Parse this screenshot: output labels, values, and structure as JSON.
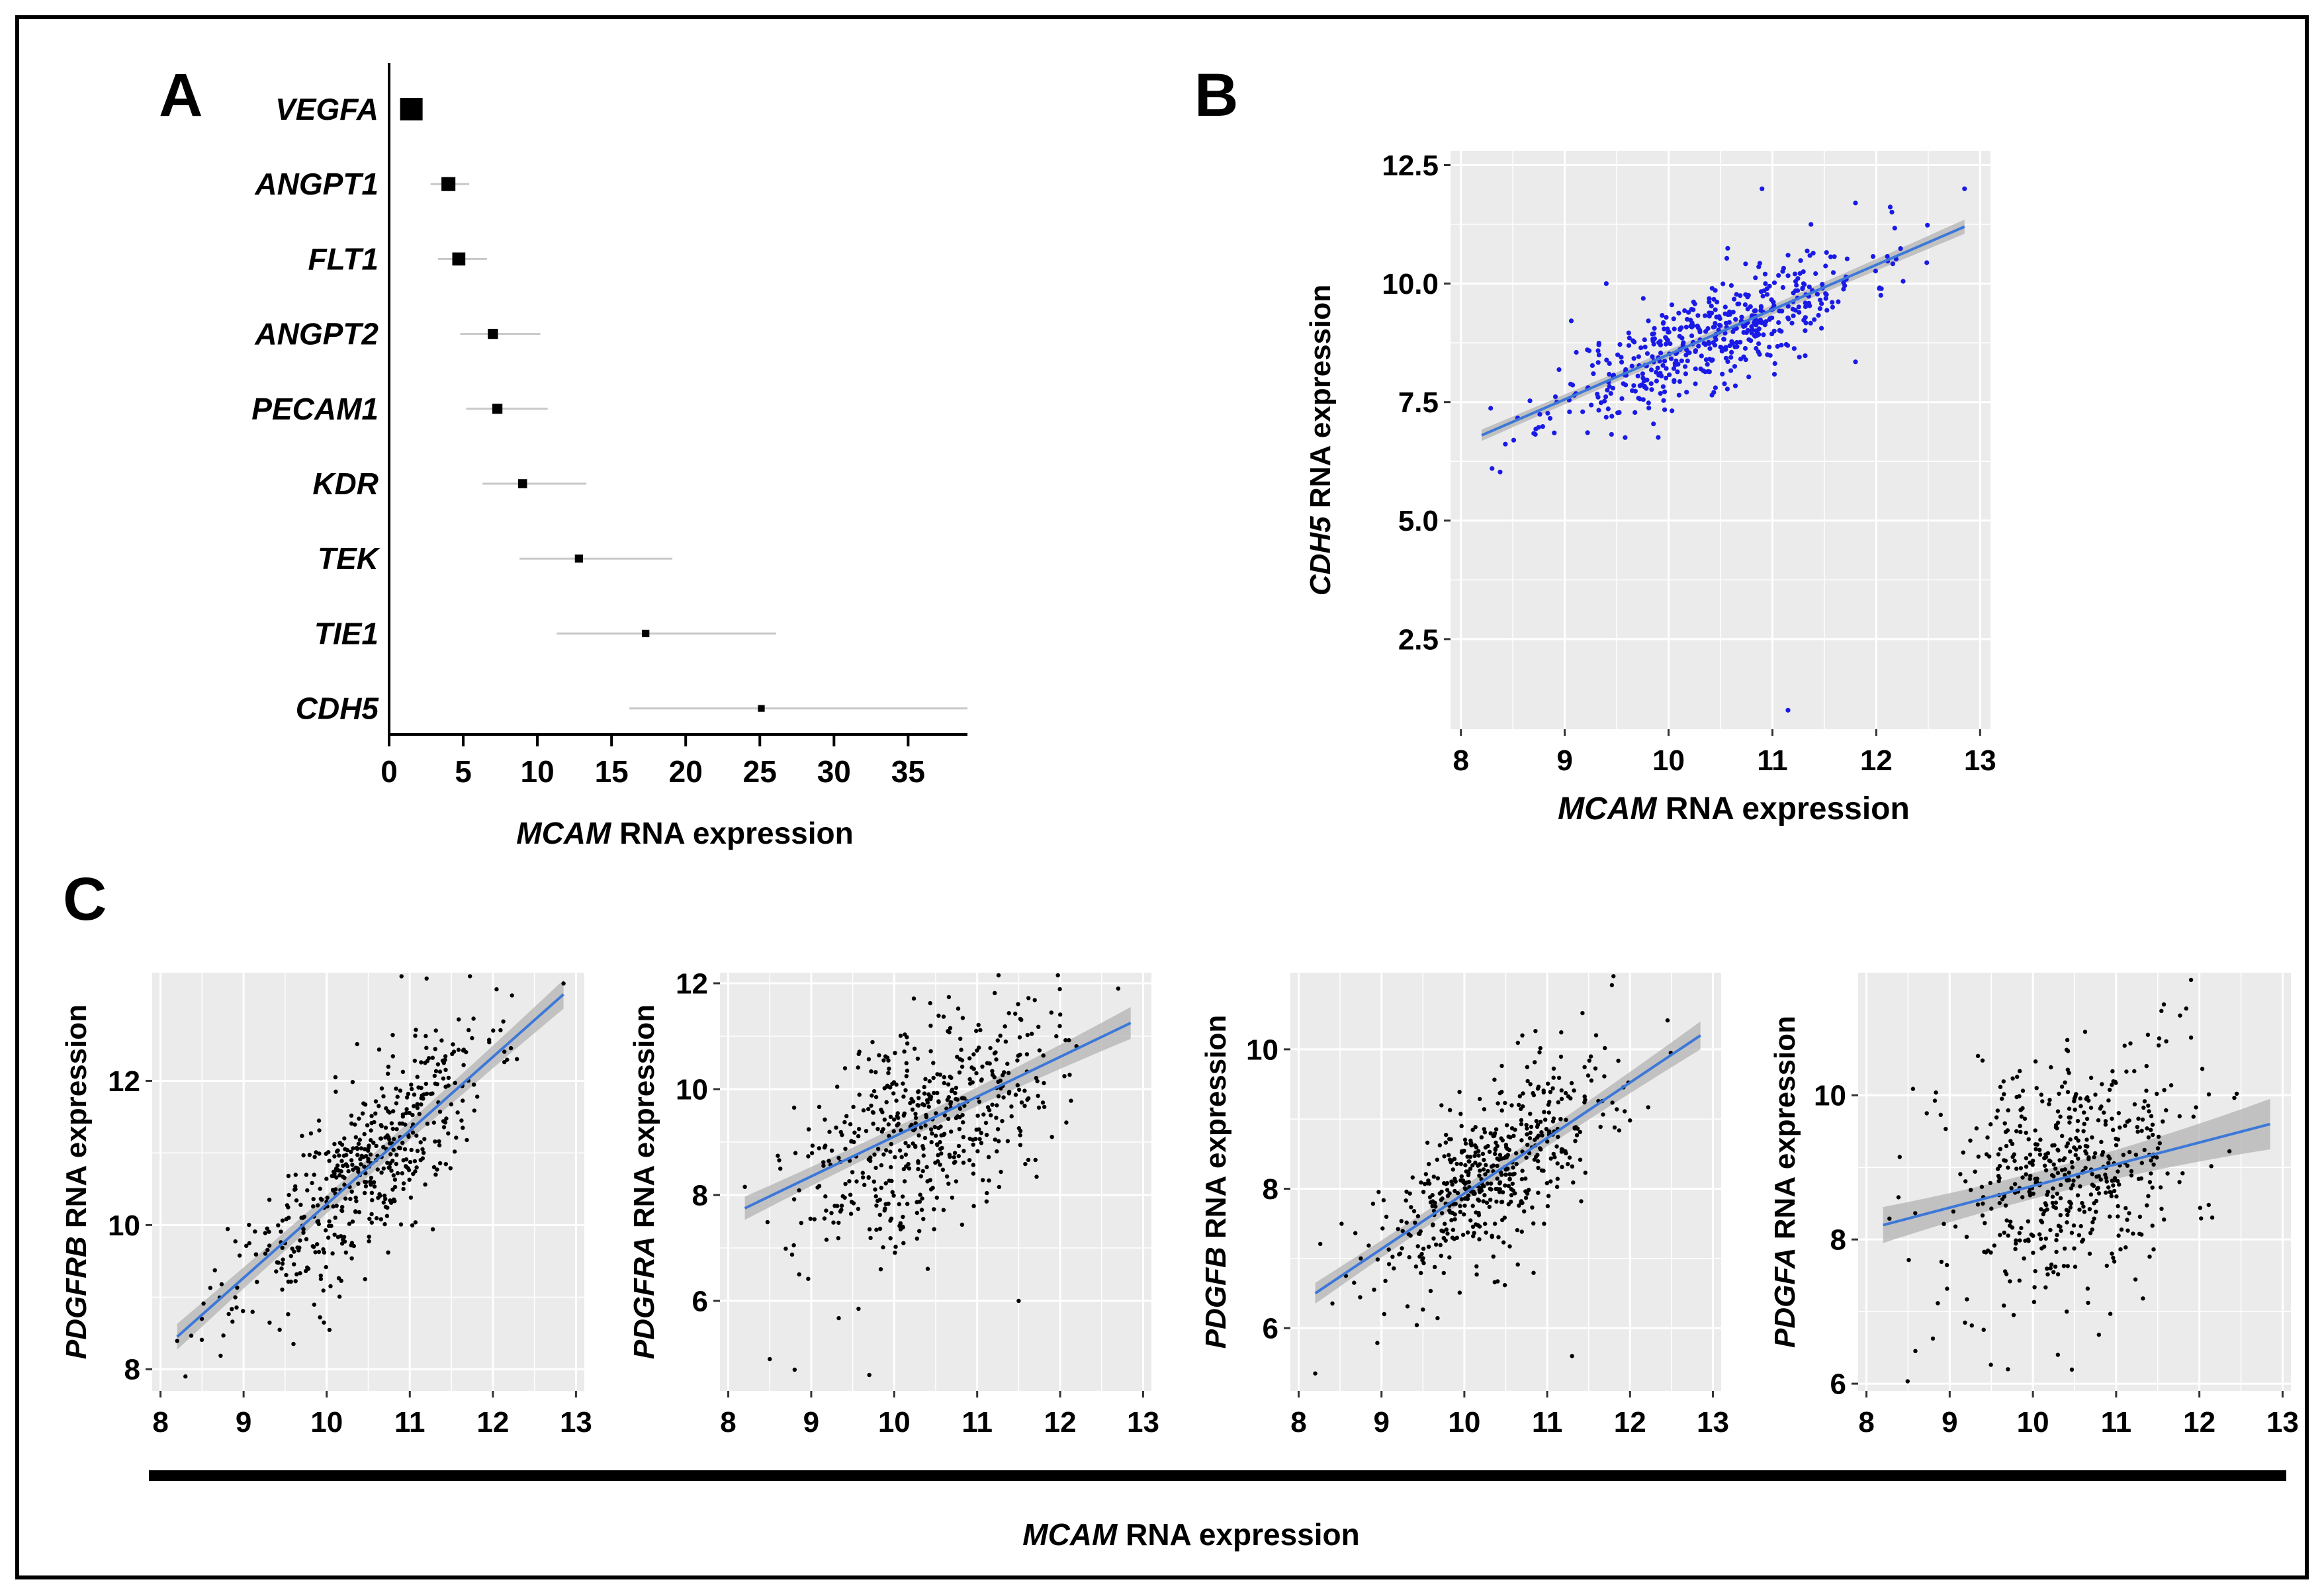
{
  "panel_labels": {
    "a": "A",
    "b": "B",
    "c": "C"
  },
  "common_xlabel": {
    "italic": "MCAM",
    "rest": " RNA expression"
  },
  "colors": {
    "plot_bg": "#ebebeb",
    "grid": "#ffffff",
    "blue_points": "#1a1ae6",
    "black_points": "#000000",
    "fit_line": "#3d78d8",
    "conf_band": "#b3b3b3",
    "frame": "#000000"
  },
  "chart_data": [
    {
      "id": "A",
      "type": "forest",
      "categories": [
        "VEGFA",
        "ANGPT1",
        "FLT1",
        "ANGPT2",
        "PECAM1",
        "KDR",
        "TEK",
        "TIE1",
        "CDH5"
      ],
      "estimates": [
        1.5,
        4.0,
        4.7,
        7.0,
        7.3,
        9.0,
        12.8,
        17.3,
        25.1
      ],
      "ci_low": [
        0.8,
        2.8,
        3.3,
        4.8,
        5.2,
        6.3,
        8.8,
        11.3,
        16.2
      ],
      "ci_high": [
        2.2,
        5.4,
        6.6,
        10.2,
        10.7,
        13.3,
        19.1,
        26.1,
        39.0
      ],
      "marker_size": [
        1.0,
        0.62,
        0.58,
        0.45,
        0.45,
        0.4,
        0.36,
        0.33,
        0.3
      ],
      "xlim": [
        0,
        39
      ],
      "xticks": [
        0,
        5,
        10,
        15,
        20,
        25,
        30,
        35
      ],
      "xlabel": {
        "italic": "MCAM",
        "rest": " RNA expression"
      }
    },
    {
      "id": "B",
      "type": "scatter",
      "xlabel": {
        "italic": "MCAM",
        "rest": " RNA expression"
      },
      "ylabel": {
        "italic": "CDH5",
        "rest": " RNA expression"
      },
      "xlim": [
        7.9,
        13.1
      ],
      "ylim": [
        0.6,
        12.8
      ],
      "xticks": [
        8,
        9,
        10,
        11,
        12,
        13
      ],
      "yticks": [
        2.5,
        5.0,
        7.5,
        10.0,
        12.5
      ],
      "ytick_labels": [
        "2.5",
        "5.0",
        "7.5",
        "10.0",
        "12.5"
      ],
      "fit": {
        "x": [
          8.2,
          12.85
        ],
        "y": [
          6.8,
          11.2
        ]
      },
      "band": [
        0.12,
        0.06,
        0.15
      ],
      "n_points": 520,
      "spread_x": [
        8.2,
        12.85
      ],
      "center_x": 10.4,
      "sd_x": 0.75,
      "noise": 0.55,
      "point_color": "blue",
      "outliers": [
        [
          8.3,
          6.1
        ],
        [
          9.4,
          10.0
        ],
        [
          10.9,
          12.0
        ],
        [
          11.15,
          1.0
        ],
        [
          11.8,
          11.7
        ],
        [
          11.8,
          8.35
        ],
        [
          12.85,
          12.0
        ]
      ]
    },
    {
      "id": "C1",
      "type": "scatter",
      "xlabel": {
        "italic": "MCAM",
        "rest": " RNA expression"
      },
      "ylabel": {
        "italic": "PDGFRB",
        "rest": " RNA expression"
      },
      "xlim": [
        7.9,
        13.1
      ],
      "ylim": [
        7.7,
        13.5
      ],
      "xticks": [
        8,
        9,
        10,
        11,
        12,
        13
      ],
      "yticks": [
        8,
        10,
        12
      ],
      "ytick_labels": [
        "8",
        "10",
        "12"
      ],
      "fit": {
        "x": [
          8.2,
          12.85
        ],
        "y": [
          8.45,
          13.2
        ]
      },
      "band": [
        0.18,
        0.06,
        0.2
      ],
      "n_points": 520,
      "spread_x": [
        8.2,
        12.85
      ],
      "center_x": 10.4,
      "sd_x": 0.75,
      "noise": 0.6,
      "point_color": "black",
      "outliers": [
        [
          8.3,
          7.9
        ],
        [
          10.9,
          13.45
        ],
        [
          12.85,
          13.35
        ]
      ]
    },
    {
      "id": "C2",
      "type": "scatter",
      "xlabel": {
        "italic": "MCAM",
        "rest": " RNA expression"
      },
      "ylabel": {
        "italic": "PDGFRA",
        "rest": " RNA expression"
      },
      "xlim": [
        7.9,
        13.1
      ],
      "ylim": [
        4.3,
        12.2
      ],
      "xticks": [
        8,
        9,
        10,
        11,
        12,
        13
      ],
      "yticks": [
        6,
        8,
        10,
        12
      ],
      "ytick_labels": [
        "6",
        "8",
        "10",
        "12"
      ],
      "fit": {
        "x": [
          8.2,
          12.85
        ],
        "y": [
          7.75,
          11.25
        ]
      },
      "band": [
        0.22,
        0.07,
        0.3
      ],
      "n_points": 520,
      "spread_x": [
        8.2,
        12.85
      ],
      "center_x": 10.4,
      "sd_x": 0.75,
      "noise": 1.0,
      "point_color": "black",
      "outliers": [
        [
          8.5,
          4.9
        ],
        [
          8.8,
          4.7
        ],
        [
          9.7,
          4.6
        ],
        [
          11.5,
          6.0
        ],
        [
          12.7,
          11.9
        ]
      ]
    },
    {
      "id": "C3",
      "type": "scatter",
      "xlabel": {
        "italic": "MCAM",
        "rest": " RNA expression"
      },
      "ylabel": {
        "italic": "PDGFB",
        "rest": " RNA expression"
      },
      "xlim": [
        7.9,
        13.1
      ],
      "ylim": [
        5.1,
        11.1
      ],
      "xticks": [
        8,
        9,
        10,
        11,
        12,
        13
      ],
      "yticks": [
        6,
        8,
        10
      ],
      "ytick_labels": [
        "6",
        "8",
        "10"
      ],
      "fit": {
        "x": [
          8.2,
          12.85
        ],
        "y": [
          6.5,
          10.2
        ]
      },
      "band": [
        0.15,
        0.05,
        0.2
      ],
      "n_points": 520,
      "spread_x": [
        8.2,
        12.85
      ],
      "center_x": 10.4,
      "sd_x": 0.75,
      "noise": 0.6,
      "point_color": "black",
      "outliers": [
        [
          8.2,
          5.35
        ],
        [
          10.7,
          10.2
        ],
        [
          11.8,
          11.05
        ],
        [
          11.3,
          5.6
        ]
      ]
    },
    {
      "id": "C4",
      "type": "scatter",
      "xlabel": {
        "italic": "MCAM",
        "rest": " RNA expression"
      },
      "ylabel": {
        "italic": "PDGFA",
        "rest": " RNA expression"
      },
      "xlim": [
        7.9,
        13.1
      ],
      "ylim": [
        5.9,
        11.7
      ],
      "xticks": [
        8,
        9,
        10,
        11,
        12,
        13
      ],
      "yticks": [
        6,
        8,
        10
      ],
      "ytick_labels": [
        "6",
        "8",
        "10"
      ],
      "fit": {
        "x": [
          8.2,
          12.85
        ],
        "y": [
          8.2,
          9.6
        ]
      },
      "band": [
        0.25,
        0.07,
        0.35
      ],
      "n_points": 520,
      "spread_x": [
        8.2,
        12.85
      ],
      "center_x": 10.4,
      "sd_x": 0.75,
      "noise": 0.85,
      "point_color": "black",
      "outliers": [
        [
          11.9,
          11.6
        ],
        [
          11.9,
          10.8
        ],
        [
          9.7,
          6.2
        ],
        [
          10.3,
          6.4
        ]
      ]
    }
  ]
}
